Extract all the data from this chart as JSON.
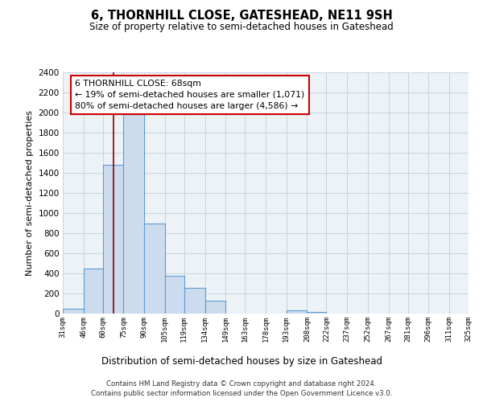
{
  "title_line1": "6, THORNHILL CLOSE, GATESHEAD, NE11 9SH",
  "title_line2": "Size of property relative to semi-detached houses in Gateshead",
  "xlabel": "Distribution of semi-detached houses by size in Gateshead",
  "ylabel": "Number of semi-detached properties",
  "bin_edges": [
    31,
    46,
    60,
    75,
    90,
    105,
    119,
    134,
    149,
    163,
    178,
    193,
    208,
    222,
    237,
    252,
    267,
    281,
    296,
    311,
    325
  ],
  "bin_counts": [
    45,
    450,
    1480,
    2000,
    900,
    375,
    255,
    125,
    0,
    0,
    0,
    35,
    20,
    0,
    0,
    0,
    0,
    0,
    0,
    0
  ],
  "tick_labels": [
    "31sqm",
    "46sqm",
    "60sqm",
    "75sqm",
    "90sqm",
    "105sqm",
    "119sqm",
    "134sqm",
    "149sqm",
    "163sqm",
    "178sqm",
    "193sqm",
    "208sqm",
    "222sqm",
    "237sqm",
    "252sqm",
    "267sqm",
    "281sqm",
    "296sqm",
    "311sqm",
    "325sqm"
  ],
  "bar_fill_color": "#ccdcee",
  "bar_edge_color": "#5b9bd5",
  "red_line_x": 68,
  "annotation_line1": "6 THORNHILL CLOSE: 68sqm",
  "annotation_line2": "← 19% of semi-detached houses are smaller (1,071)",
  "annotation_line3": "80% of semi-detached houses are larger (4,586) →",
  "ylim": [
    0,
    2400
  ],
  "yticks": [
    0,
    200,
    400,
    600,
    800,
    1000,
    1200,
    1400,
    1600,
    1800,
    2000,
    2200,
    2400
  ],
  "grid_color": "#c8d4e0",
  "background_color": "#edf2f7",
  "footer_line1": "Contains HM Land Registry data © Crown copyright and database right 2024.",
  "footer_line2": "Contains public sector information licensed under the Open Government Licence v3.0."
}
